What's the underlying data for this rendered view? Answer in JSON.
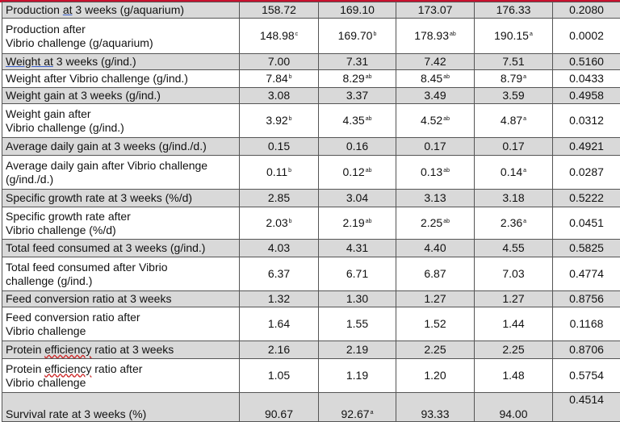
{
  "rows": [
    {
      "label": "Production at 3 weeks (g/aquarium)",
      "values": [
        "158.72",
        "169.10",
        "173.07",
        "176.33"
      ],
      "sup": [
        "",
        "",
        "",
        ""
      ],
      "p": "0.2080"
    },
    {
      "label": "Production after Vibrio challenge (g/aquarium)",
      "values": [
        "148.98",
        "169.70",
        "178.93",
        "190.15"
      ],
      "sup": [
        "c",
        "b",
        "ab",
        "a"
      ],
      "p": "0.0002"
    },
    {
      "label": "Weight at 3 weeks (g/ind.)",
      "values": [
        "7.00",
        "7.31",
        "7.42",
        "7.51"
      ],
      "sup": [
        "",
        "",
        "",
        ""
      ],
      "p": "0.5160"
    },
    {
      "label": "Weight after Vibrio challenge (g/ind.)",
      "values": [
        "7.84",
        "8.29",
        "8.45",
        "8.79"
      ],
      "sup": [
        "b",
        "ab",
        "ab",
        "a"
      ],
      "p": "0.0433"
    },
    {
      "label": "Weight gain at 3 weeks (g/ind.)",
      "values": [
        "3.08",
        "3.37",
        "3.49",
        "3.59"
      ],
      "sup": [
        "",
        "",
        "",
        ""
      ],
      "p": "0.4958"
    },
    {
      "label": "Weight gain after Vibrio challenge (g/ind.)",
      "values": [
        "3.92",
        "4.35",
        "4.52",
        "4.87"
      ],
      "sup": [
        "b",
        "ab",
        "ab",
        "a"
      ],
      "p": "0.0312"
    },
    {
      "label": "Average daily gain at 3 weeks (g/ind./d.)",
      "values": [
        "0.15",
        "0.16",
        "0.17",
        "0.17"
      ],
      "sup": [
        "",
        "",
        "",
        ""
      ],
      "p": "0.4921"
    },
    {
      "label": "Average daily gain after Vibrio challenge (g/ind./d.)",
      "values": [
        "0.11",
        "0.12",
        "0.13",
        "0.14"
      ],
      "sup": [
        "b",
        "ab",
        "ab",
        "a"
      ],
      "p": "0.0287"
    },
    {
      "label": "Specific growth rate at 3 weeks (%/d)",
      "values": [
        "2.85",
        "3.04",
        "3.13",
        "3.18"
      ],
      "sup": [
        "",
        "",
        "",
        ""
      ],
      "p": "0.5222"
    },
    {
      "label": "Specific growth rate after Vibrio challenge (%/d)",
      "values": [
        "2.03",
        "2.19",
        "2.25",
        "2.36"
      ],
      "sup": [
        "b",
        "ab",
        "ab",
        "a"
      ],
      "p": "0.0451"
    },
    {
      "label": "Total feed consumed at 3 weeks (g/ind.)",
      "values": [
        "4.03",
        "4.31",
        "4.40",
        "4.55"
      ],
      "sup": [
        "",
        "",
        "",
        ""
      ],
      "p": "0.5825"
    },
    {
      "label": "Total feed consumed after Vibrio challenge (g/ind.)",
      "values": [
        "6.37",
        "6.71",
        "6.87",
        "7.03"
      ],
      "sup": [
        "",
        "",
        "",
        ""
      ],
      "p": "0.4774"
    },
    {
      "label": "Feed conversion ratio at 3 weeks",
      "values": [
        "1.32",
        "1.30",
        "1.27",
        "1.27"
      ],
      "sup": [
        "",
        "",
        "",
        ""
      ],
      "p": "0.8756"
    },
    {
      "label": "Feed conversion ratio after Vibrio challenge",
      "values": [
        "1.64",
        "1.55",
        "1.52",
        "1.44"
      ],
      "sup": [
        "",
        "",
        "",
        ""
      ],
      "p": "0.1168"
    },
    {
      "label": "Protein efficiency ratio at 3 weeks",
      "values": [
        "2.16",
        "2.19",
        "2.25",
        "2.25"
      ],
      "sup": [
        "",
        "",
        "",
        ""
      ],
      "p": "0.8706"
    },
    {
      "label": "Protein efficiency ratio after Vibrio challenge",
      "values": [
        "1.05",
        "1.19",
        "1.20",
        "1.48"
      ],
      "sup": [
        "",
        "",
        "",
        ""
      ],
      "p": "0.5754"
    },
    {
      "label": "Survival rate at 3 weeks (%)",
      "values": [
        "90.67",
        "92.67",
        "93.33",
        "94.00"
      ],
      "sup": [
        "",
        "a",
        "",
        ""
      ],
      "p": "0.4514"
    }
  ]
}
